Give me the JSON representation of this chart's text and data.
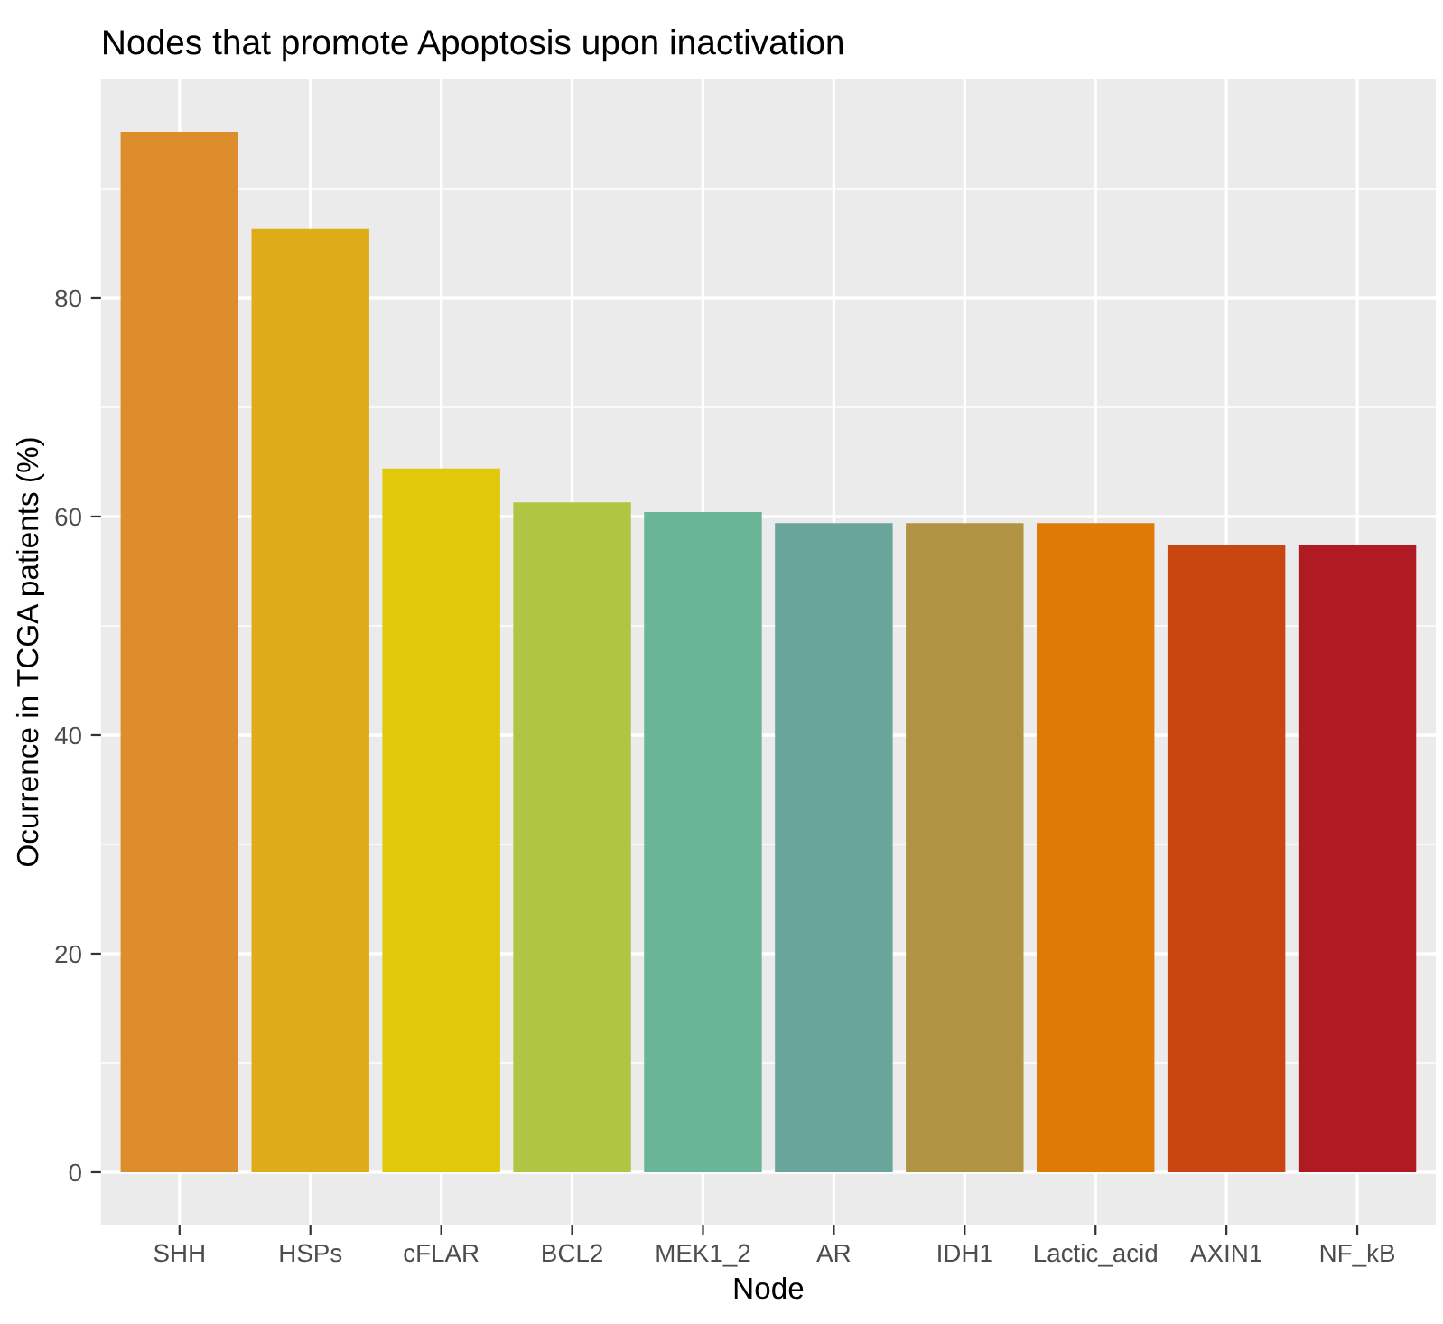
{
  "chart_data": {
    "type": "bar",
    "title": "Nodes that promote Apoptosis upon inactivation",
    "xlabel": "Node",
    "ylabel": "Ocurrence in TCGA patients (%)",
    "categories": [
      "SHH",
      "HSPs",
      "cFLAR",
      "BCL2",
      "MEK1_2",
      "AR",
      "IDH1",
      "Lactic_acid",
      "AXIN1",
      "NF_kB"
    ],
    "values": [
      95.2,
      86.3,
      64.4,
      61.3,
      60.4,
      59.4,
      59.4,
      59.4,
      57.4,
      57.4
    ],
    "colors": [
      "#dd8d2b",
      "#e0ab18",
      "#e0c80a",
      "#b0c544",
      "#69b597",
      "#69a59b",
      "#b09444",
      "#e07a06",
      "#c94512",
      "#b01a22"
    ],
    "ylim": [
      -4.8,
      100
    ],
    "yticks": [
      0,
      20,
      40,
      60,
      80
    ],
    "grid": true,
    "legend": false
  }
}
